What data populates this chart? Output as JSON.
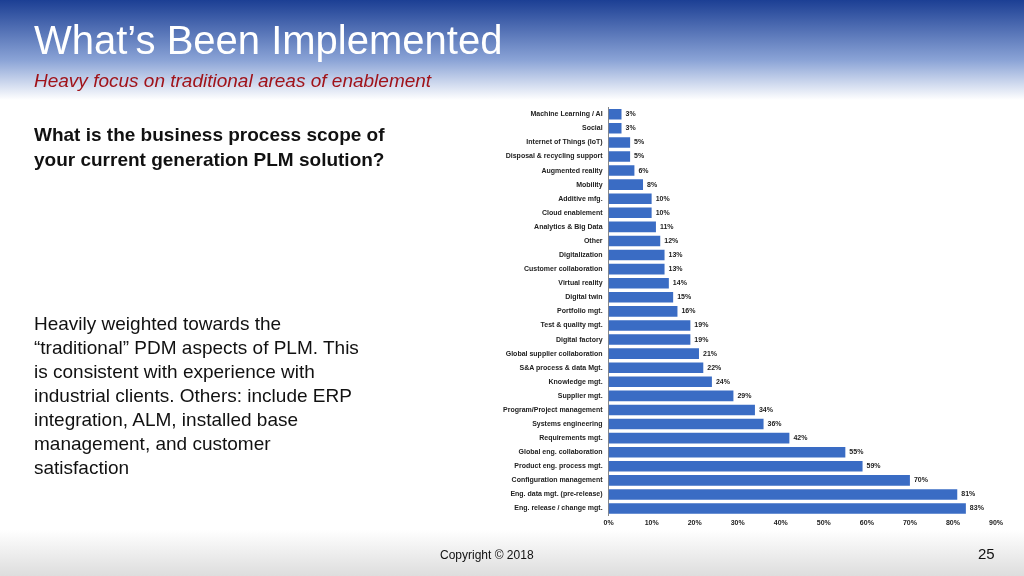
{
  "chart_data": {
    "type": "bar",
    "orientation": "horizontal",
    "title": "What’s Been Implemented",
    "subtitle": "Heavy focus on traditional areas of enablement",
    "categories": [
      "Machine Learning / AI",
      "Social",
      "Internet of Things (IoT)",
      "Disposal & recycling support",
      "Augmented reality",
      "Mobility",
      "Additive mfg.",
      "Cloud enablement",
      "Analytics & Big Data",
      "Other",
      "Digitalization",
      "Customer collaboration",
      "Virtual reality",
      "Digital twin",
      "Portfolio mgt.",
      "Test & quality mgt.",
      "Digital factory",
      "Global supplier collaboration",
      "S&A process & data Mgt.",
      "Knowledge mgt.",
      "Supplier mgt.",
      "Program/Project management",
      "Systems engineering",
      "Requirements mgt.",
      "Global eng. collaboration",
      "Product eng. process mgt.",
      "Configuration management",
      "Eng. data mgt. (pre-release)",
      "Eng. release / change mgt."
    ],
    "values": [
      3,
      3,
      5,
      5,
      6,
      8,
      10,
      10,
      11,
      12,
      13,
      13,
      14,
      15,
      16,
      19,
      19,
      21,
      22,
      24,
      29,
      34,
      36,
      42,
      55,
      59,
      70,
      81,
      83
    ],
    "value_labels": [
      "3%",
      "3%",
      "5%",
      "5%",
      "6%",
      "8%",
      "10%",
      "10%",
      "11%",
      "12%",
      "13%",
      "13%",
      "14%",
      "15%",
      "16%",
      "19%",
      "19%",
      "21%",
      "22%",
      "24%",
      "29%",
      "34%",
      "36%",
      "42%",
      "55%",
      "59%",
      "70%",
      "81%",
      "83%"
    ],
    "color": "#3a6cc4",
    "xlim": [
      0,
      90
    ],
    "xticks": [
      {
        "value": 0,
        "label": "0%"
      },
      {
        "value": 10,
        "label": "10%"
      },
      {
        "value": 20,
        "label": "20%"
      },
      {
        "value": 30,
        "label": "30%"
      },
      {
        "value": 40,
        "label": "40%"
      },
      {
        "value": 50,
        "label": "50%"
      },
      {
        "value": 60,
        "label": "60%"
      },
      {
        "value": 70,
        "label": "70%"
      },
      {
        "value": 80,
        "label": "80%"
      },
      {
        "value": 90,
        "label": "90%"
      }
    ],
    "grid": false,
    "legend": false,
    "annotations": [
      "What is the business process scope of your current generation PLM solution?",
      "Heavily weighted towards the “traditional” PDM aspects of PLM. This is consistent with experience with industrial clients. Others: include ERP integration, ALM, installed base management, and customer satisfaction",
      "Copyright © 2018",
      "25"
    ]
  }
}
